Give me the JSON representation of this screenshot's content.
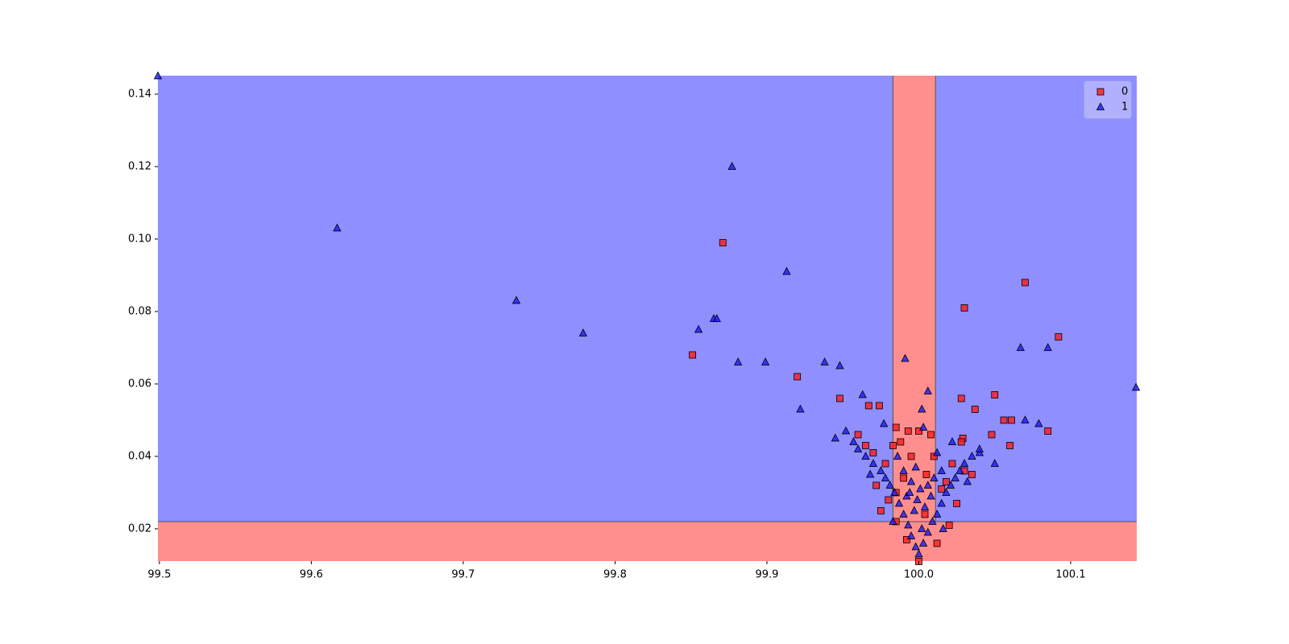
{
  "chart_data": {
    "type": "scatter",
    "xlim": [
      99.499,
      100.1435
    ],
    "ylim": [
      0.0111,
      0.1451
    ],
    "xticks": [
      99.5,
      99.6,
      99.7,
      99.8,
      99.9,
      {
        "value": 100,
        "label": "100.0"
      },
      100.1
    ],
    "yticks": [
      0.02,
      0.04,
      0.06,
      0.08,
      {
        "value": 0.1,
        "label": "0.10"
      },
      0.12,
      0.14
    ],
    "decision_regions": {
      "x_band": [
        99.983,
        100.011
      ],
      "y_below": 0.022
    },
    "legend": "upper right",
    "series": [
      {
        "name": "0",
        "color": "#ff1a1a",
        "marker": "square",
        "x": [
          99.871,
          99.851,
          99.92,
          100.07,
          100.03,
          100.092,
          99.948,
          99.967,
          99.974,
          100.028,
          100.05,
          100.037,
          100.056,
          100.061,
          100.085,
          100.06,
          100.048,
          100.029,
          99.96,
          99.985,
          100.0,
          100.012,
          99.992,
          100.02,
          99.985,
          99.975,
          100.025,
          99.98,
          100.015,
          99.99,
          100.005,
          99.972,
          100.03,
          99.978,
          100.022,
          99.995,
          100.01,
          99.97,
          100.028,
          99.988,
          100.008,
          99.983,
          99.993,
          100.0,
          99.965,
          100.035,
          100.018,
          99.985,
          100.004
        ],
        "y": [
          0.099,
          0.068,
          0.062,
          0.088,
          0.081,
          0.073,
          0.056,
          0.054,
          0.054,
          0.056,
          0.057,
          0.053,
          0.05,
          0.05,
          0.047,
          0.043,
          0.046,
          0.045,
          0.046,
          0.048,
          0.011,
          0.016,
          0.017,
          0.021,
          0.022,
          0.025,
          0.027,
          0.028,
          0.031,
          0.034,
          0.035,
          0.032,
          0.036,
          0.038,
          0.038,
          0.04,
          0.04,
          0.041,
          0.044,
          0.044,
          0.046,
          0.043,
          0.047,
          0.047,
          0.043,
          0.035,
          0.033,
          0.03,
          0.024
        ]
      },
      {
        "name": "1",
        "color": "#1a1aff",
        "marker": "triangle",
        "x": [
          99.499,
          99.617,
          99.735,
          99.779,
          99.855,
          99.865,
          99.867,
          99.877,
          99.881,
          99.899,
          99.913,
          99.922,
          99.938,
          99.948,
          99.991,
          100.006,
          100.002,
          100.067,
          100.085,
          100.143,
          99.963,
          99.945,
          99.952,
          100.07,
          100.079,
          100.04,
          100.05,
          100.0,
          99.998,
          100.003,
          99.995,
          100.006,
          99.993,
          100.009,
          99.99,
          100.012,
          99.997,
          100.004,
          99.987,
          100.015,
          99.992,
          100.008,
          99.984,
          100.018,
          100.001,
          99.981,
          100.021,
          99.995,
          100.01,
          99.978,
          100.024,
          99.99,
          100.015,
          99.975,
          100.027,
          99.97,
          100.03,
          99.998,
          99.965,
          100.035,
          99.96,
          100.04,
          99.986,
          100.012,
          99.957,
          100.022,
          99.977,
          100.003,
          99.968,
          100.032,
          99.983,
          100.016,
          100.002,
          99.999,
          100.006,
          99.994
        ],
        "y": [
          0.145,
          0.103,
          0.083,
          0.074,
          0.075,
          0.078,
          0.078,
          0.12,
          0.066,
          0.066,
          0.091,
          0.053,
          0.066,
          0.065,
          0.067,
          0.058,
          0.053,
          0.07,
          0.07,
          0.059,
          0.057,
          0.045,
          0.047,
          0.05,
          0.049,
          0.041,
          0.038,
          0.013,
          0.015,
          0.016,
          0.018,
          0.019,
          0.021,
          0.022,
          0.024,
          0.024,
          0.025,
          0.026,
          0.027,
          0.027,
          0.029,
          0.029,
          0.03,
          0.03,
          0.031,
          0.032,
          0.032,
          0.033,
          0.034,
          0.034,
          0.034,
          0.036,
          0.036,
          0.036,
          0.036,
          0.038,
          0.038,
          0.037,
          0.04,
          0.04,
          0.042,
          0.042,
          0.04,
          0.041,
          0.044,
          0.044,
          0.049,
          0.048,
          0.035,
          0.033,
          0.022,
          0.02,
          0.02,
          0.028,
          0.032,
          0.03
        ]
      }
    ]
  }
}
